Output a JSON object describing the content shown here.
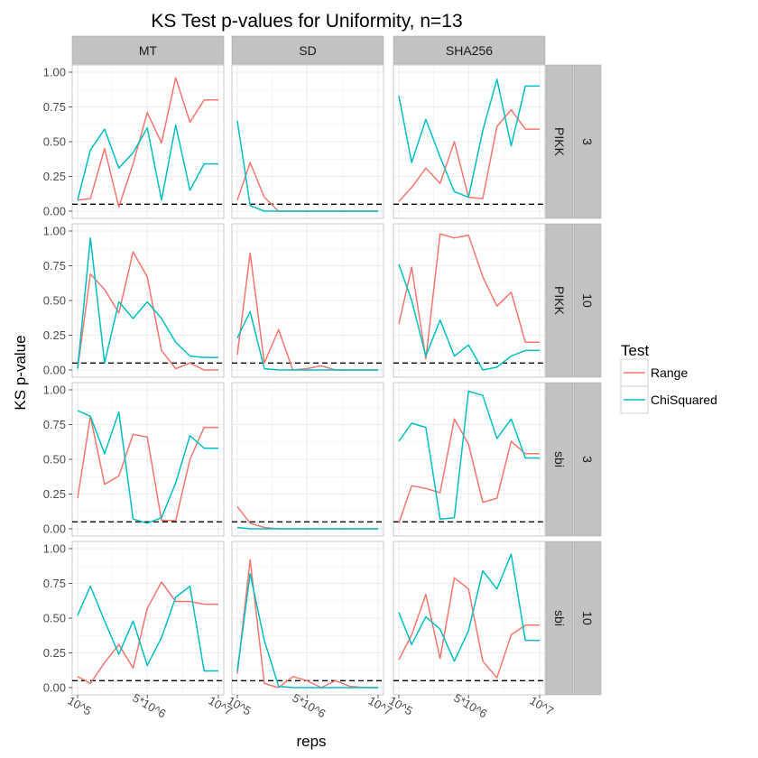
{
  "chart_data": {
    "type": "line",
    "title": "KS Test p-values for Uniformity, n=13",
    "xlabel": "reps",
    "ylabel": "KS p-value",
    "ylim": [
      0,
      1.0
    ],
    "y_ticks": [
      0,
      0.25,
      0.5,
      0.75,
      1.0
    ],
    "y_tick_labels": [
      "0.00",
      "0.25",
      "0.50",
      "0.75",
      "1.00"
    ],
    "x_ticks": [
      100000,
      5000000,
      10000000
    ],
    "x_tick_labels": [
      "10^5",
      "5*10^6",
      "10^7"
    ],
    "xlim": [
      100000,
      10000000
    ],
    "x": [
      100000,
      1000000,
      2000000,
      3000000,
      4000000,
      5000000,
      6000000,
      7000000,
      8000000,
      9000000,
      10000000
    ],
    "reference_line": 0.05,
    "col_facets": [
      "MT",
      "SD",
      "SHA256"
    ],
    "row_facets": [
      {
        "method": "PIKK",
        "n": "3"
      },
      {
        "method": "PIKK",
        "n": "10"
      },
      {
        "method": "sbi",
        "n": "3"
      },
      {
        "method": "sbi",
        "n": "10"
      }
    ],
    "legend": {
      "title": "Test",
      "position": "right",
      "entries": [
        {
          "name": "Range",
          "color": "#F8766D"
        },
        {
          "name": "ChiSquared",
          "color": "#00BFC4"
        }
      ]
    },
    "grid": true,
    "panels": [
      [
        {
          "Range": [
            0.08,
            0.09,
            0.45,
            0.03,
            0.34,
            0.71,
            0.49,
            0.96,
            0.64,
            0.8,
            0.8
          ],
          "ChiSquared": [
            0.08,
            0.44,
            0.59,
            0.31,
            0.42,
            0.6,
            0.08,
            0.62,
            0.15,
            0.34,
            0.34
          ]
        },
        {
          "Range": [
            0.08,
            0.35,
            0.1,
            0.0,
            0.0,
            0.0,
            0.0,
            0.0,
            0.0,
            0.0,
            0.0
          ],
          "ChiSquared": [
            0.65,
            0.04,
            0.0,
            0.0,
            0.0,
            0.0,
            0.0,
            0.0,
            0.0,
            0.0,
            0.0
          ]
        },
        {
          "Range": [
            0.07,
            0.17,
            0.31,
            0.2,
            0.5,
            0.1,
            0.09,
            0.61,
            0.73,
            0.59,
            0.59
          ],
          "ChiSquared": [
            0.83,
            0.35,
            0.66,
            0.39,
            0.14,
            0.1,
            0.58,
            0.95,
            0.47,
            0.9,
            0.9
          ]
        }
      ],
      [
        {
          "Range": [
            0.01,
            0.69,
            0.58,
            0.41,
            0.85,
            0.67,
            0.14,
            0.01,
            0.05,
            0.0,
            0.0
          ],
          "ChiSquared": [
            0.01,
            0.95,
            0.05,
            0.49,
            0.37,
            0.49,
            0.37,
            0.2,
            0.1,
            0.09,
            0.09
          ]
        },
        {
          "Range": [
            0.11,
            0.84,
            0.05,
            0.29,
            0.0,
            0.01,
            0.03,
            0.0,
            0.0,
            0.0,
            0.0
          ],
          "ChiSquared": [
            0.23,
            0.42,
            0.01,
            0.0,
            0.0,
            0.0,
            0.0,
            0.0,
            0.0,
            0.0,
            0.0
          ]
        },
        {
          "Range": [
            0.33,
            0.74,
            0.08,
            0.98,
            0.95,
            0.97,
            0.67,
            0.46,
            0.56,
            0.2,
            0.2
          ],
          "ChiSquared": [
            0.76,
            0.5,
            0.1,
            0.36,
            0.1,
            0.18,
            0.0,
            0.02,
            0.1,
            0.14,
            0.14
          ]
        }
      ],
      [
        {
          "Range": [
            0.22,
            0.81,
            0.32,
            0.38,
            0.68,
            0.66,
            0.06,
            0.06,
            0.5,
            0.73,
            0.73
          ],
          "ChiSquared": [
            0.85,
            0.81,
            0.54,
            0.84,
            0.07,
            0.04,
            0.08,
            0.33,
            0.67,
            0.58,
            0.58
          ]
        },
        {
          "Range": [
            0.16,
            0.04,
            0.01,
            0.0,
            0.0,
            0.0,
            0.0,
            0.0,
            0.0,
            0.0,
            0.0
          ],
          "ChiSquared": [
            0.01,
            0.0,
            0.0,
            0.0,
            0.0,
            0.0,
            0.0,
            0.0,
            0.0,
            0.0,
            0.0
          ]
        },
        {
          "Range": [
            0.04,
            0.31,
            0.29,
            0.26,
            0.79,
            0.61,
            0.19,
            0.22,
            0.63,
            0.54,
            0.54
          ],
          "ChiSquared": [
            0.63,
            0.76,
            0.73,
            0.07,
            0.08,
            0.99,
            0.96,
            0.65,
            0.79,
            0.51,
            0.51
          ]
        }
      ],
      [
        {
          "Range": [
            0.08,
            0.03,
            0.18,
            0.31,
            0.14,
            0.57,
            0.76,
            0.62,
            0.62,
            0.6,
            0.6
          ],
          "ChiSquared": [
            0.52,
            0.73,
            0.48,
            0.24,
            0.48,
            0.16,
            0.36,
            0.65,
            0.73,
            0.12,
            0.12
          ]
        },
        {
          "Range": [
            0.1,
            0.92,
            0.03,
            0.0,
            0.08,
            0.05,
            0.0,
            0.05,
            0.01,
            0.0,
            0.0
          ],
          "ChiSquared": [
            0.12,
            0.82,
            0.34,
            0.01,
            0.0,
            0.0,
            0.0,
            0.0,
            0.0,
            0.0,
            0.0
          ]
        },
        {
          "Range": [
            0.2,
            0.38,
            0.67,
            0.21,
            0.79,
            0.71,
            0.19,
            0.07,
            0.38,
            0.45,
            0.45
          ],
          "ChiSquared": [
            0.54,
            0.31,
            0.51,
            0.42,
            0.19,
            0.41,
            0.84,
            0.71,
            0.96,
            0.34,
            0.34
          ]
        }
      ]
    ]
  }
}
